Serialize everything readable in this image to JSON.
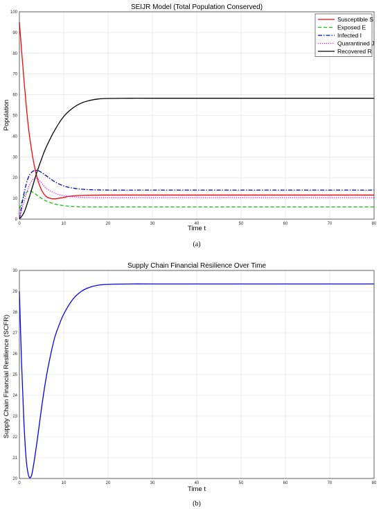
{
  "chart_data": [
    {
      "type": "line",
      "title": "SEIJR Model (Total Population Conserved)",
      "xlabel": "Time t",
      "ylabel": "Population",
      "xlim": [
        0,
        80
      ],
      "ylim": [
        0,
        100
      ],
      "xticks": [
        "0",
        "10",
        "20",
        "30",
        "40",
        "50",
        "60",
        "70",
        "80"
      ],
      "yticks": [
        "0",
        "10",
        "20",
        "30",
        "40",
        "50",
        "60",
        "70",
        "80",
        "90",
        "100"
      ],
      "grid": true,
      "legend_position": "top-right",
      "caption": "(a)",
      "series": [
        {
          "name": "Susceptible S",
          "color": "#ff0000",
          "style": "solid",
          "x": [
            0,
            1,
            2,
            3,
            4,
            5,
            6,
            7,
            8,
            9,
            10,
            12,
            15,
            20,
            30,
            40,
            60,
            80
          ],
          "y": [
            95,
            68,
            45,
            30,
            20,
            14,
            11,
            10,
            9.8,
            10.1,
            10.5,
            11.2,
            11.5,
            11.6,
            11.6,
            11.6,
            11.6,
            11.6
          ]
        },
        {
          "name": "Exposed E",
          "color": "#00cc00",
          "style": "dashed",
          "x": [
            0,
            1,
            2,
            3,
            4,
            5,
            6,
            8,
            10,
            12,
            15,
            20,
            30,
            40,
            60,
            80
          ],
          "y": [
            5,
            11,
            13.5,
            13,
            11.5,
            10,
            8.8,
            7.3,
            6.5,
            6.1,
            5.9,
            5.9,
            5.9,
            5.9,
            5.9,
            5.9
          ]
        },
        {
          "name": "Infected I",
          "color": "#0000cc",
          "style": "dashdot",
          "x": [
            0,
            1,
            2,
            3,
            4,
            5,
            6,
            8,
            10,
            12,
            15,
            20,
            25,
            30,
            40,
            60,
            80
          ],
          "y": [
            0,
            12,
            20,
            23,
            23.5,
            22.5,
            21,
            18,
            16,
            15,
            14.3,
            14,
            14,
            14,
            14,
            14,
            14
          ]
        },
        {
          "name": "Quarantined J",
          "color": "#ff00ff",
          "style": "dotted",
          "x": [
            0,
            1,
            2,
            3,
            4,
            5,
            6,
            8,
            10,
            12,
            15,
            20,
            30,
            40,
            60,
            80
          ],
          "y": [
            0,
            8,
            15,
            19,
            19.5,
            17.5,
            15,
            12.5,
            11.3,
            10.8,
            10.5,
            10.4,
            10.4,
            10.4,
            10.4,
            10.4
          ]
        },
        {
          "name": "Recovered R",
          "color": "#000000",
          "style": "solid",
          "x": [
            0,
            1,
            2,
            3,
            4,
            5,
            6,
            8,
            10,
            12,
            14,
            16,
            18,
            20,
            25,
            30,
            40,
            60,
            80
          ],
          "y": [
            0,
            3,
            9,
            16,
            23,
            29,
            34.5,
            43,
            49.5,
            53.5,
            56,
            57.3,
            58,
            58.2,
            58.3,
            58.3,
            58.3,
            58.3,
            58.3
          ]
        }
      ]
    },
    {
      "type": "line",
      "title": "Supply Chain Financial Resilience Over Time",
      "xlabel": "Time t",
      "ylabel": "Supply Chain Financial Resilience (SCFR)",
      "xlim": [
        0,
        80
      ],
      "ylim": [
        20,
        30
      ],
      "xticks": [
        "0",
        "10",
        "20",
        "30",
        "40",
        "50",
        "60",
        "70",
        "80"
      ],
      "yticks": [
        "20",
        "21",
        "22",
        "23",
        "24",
        "25",
        "26",
        "27",
        "28",
        "29",
        "30"
      ],
      "grid": true,
      "caption": "(b)",
      "series": [
        {
          "color": "#0000ff",
          "style": "solid",
          "x": [
            0,
            0.5,
            1,
            1.5,
            2,
            2.5,
            3,
            4,
            5,
            6,
            7,
            8,
            9,
            10,
            12,
            14,
            16,
            18,
            20,
            25,
            30,
            40,
            60,
            80
          ],
          "y": [
            29,
            25.5,
            22.8,
            21,
            20.2,
            20.05,
            20.4,
            21.8,
            23.4,
            24.8,
            25.9,
            26.8,
            27.4,
            27.9,
            28.6,
            29,
            29.2,
            29.3,
            29.33,
            29.35,
            29.35,
            29.35,
            29.35,
            29.35
          ]
        }
      ]
    }
  ]
}
